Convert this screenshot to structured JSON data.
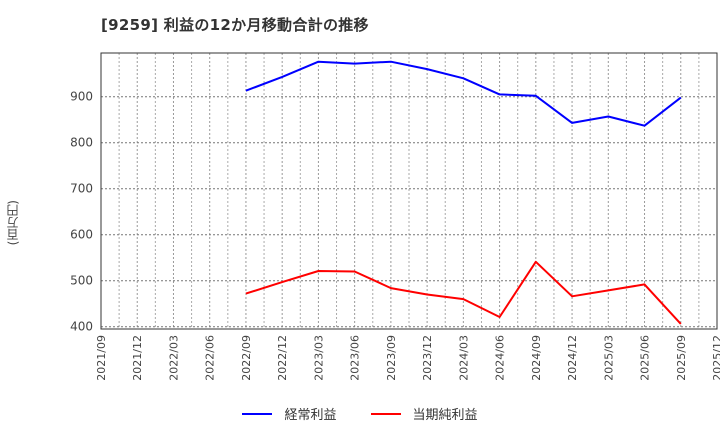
{
  "header": {
    "title": "[9259]  利益の12か月移動合計の推移"
  },
  "axis": {
    "ylabel": "(百万円)"
  },
  "legend": [
    {
      "label": "経常利益",
      "color": "#0000ff"
    },
    {
      "label": "当期純利益",
      "color": "#ff0000"
    }
  ],
  "chart_data": {
    "type": "line",
    "title": "[9259]  利益の12か月移動合計の推移",
    "xlabel": "",
    "ylabel": "(百万円)",
    "ylim": [
      395,
      995
    ],
    "yticks": [
      400,
      500,
      600,
      700,
      800,
      900
    ],
    "grid": true,
    "legend_position": "bottom",
    "x_tick_labels": [
      "2021/09",
      "2021/12",
      "2022/03",
      "2022/06",
      "2022/09",
      "2022/12",
      "2023/03",
      "2023/06",
      "2023/09",
      "2023/12",
      "2024/03",
      "2024/06",
      "2024/09",
      "2024/12",
      "2025/03",
      "2025/06",
      "2025/09",
      "2025/12"
    ],
    "x": [
      "2022/09",
      "2022/12",
      "2023/03",
      "2023/06",
      "2023/09",
      "2023/12",
      "2024/03",
      "2024/06",
      "2024/09",
      "2024/12",
      "2025/03",
      "2025/06",
      "2025/09"
    ],
    "series": [
      {
        "name": "経常利益",
        "color": "#0000ff",
        "values": [
          913,
          943,
          976,
          972,
          976,
          960,
          940,
          905,
          902,
          843,
          857,
          837,
          898
        ]
      },
      {
        "name": "当期純利益",
        "color": "#ff0000",
        "values": [
          472,
          497,
          521,
          520,
          484,
          470,
          460,
          421,
          541,
          466,
          479,
          492,
          406
        ]
      }
    ]
  }
}
